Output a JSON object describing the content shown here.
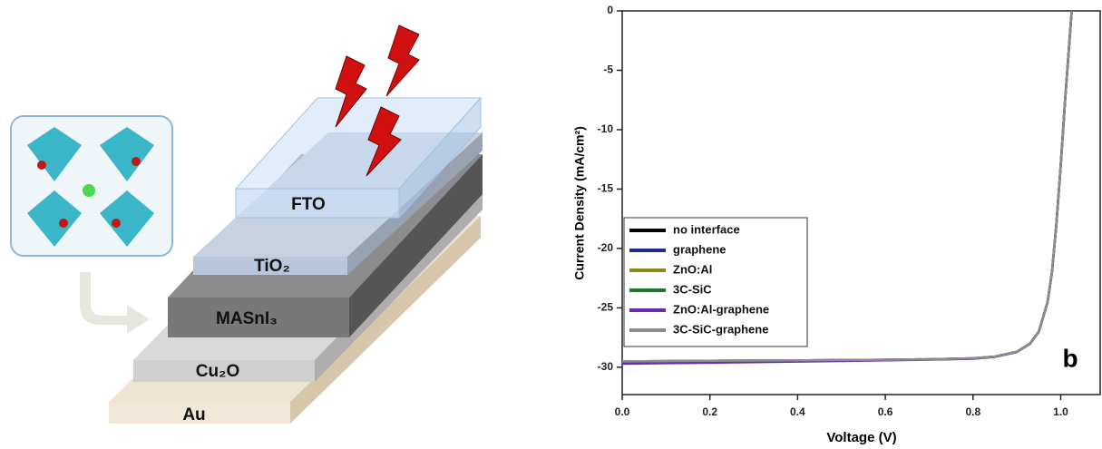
{
  "diagram": {
    "layers": [
      "FTO",
      "TiO₂",
      "MASnI₃",
      "Cu₂O",
      "Au"
    ]
  },
  "chart_data": {
    "type": "line",
    "panel_label": "b",
    "x_label": "Voltage (V)",
    "y_label": "Current Density (mA/cm²)",
    "xlim": [
      0,
      1.09
    ],
    "ylim": [
      -32.3,
      0
    ],
    "xticks": [
      {
        "value": 0,
        "label": "0.0"
      },
      0.2,
      0.4,
      0.6,
      0.8,
      {
        "value": 1,
        "label": "1.0"
      }
    ],
    "yticks": [
      0,
      -5,
      -10,
      -15,
      -20,
      -25,
      -30
    ],
    "x": [
      0,
      0.1,
      0.2,
      0.3,
      0.4,
      0.5,
      0.6,
      0.7,
      0.8,
      0.85,
      0.9,
      0.93,
      0.95,
      0.97,
      0.98,
      0.99,
      1.0,
      1.01,
      1.02,
      1.025
    ],
    "legend": "lower left",
    "series": [
      {
        "name": "no interface",
        "color": "#000000",
        "values": [
          -29.5,
          -29.48,
          -29.46,
          -29.44,
          -29.42,
          -29.4,
          -29.37,
          -29.33,
          -29.25,
          -29.1,
          -28.7,
          -28.0,
          -27.0,
          -24.5,
          -22.0,
          -18.0,
          -13.0,
          -7.5,
          -2.5,
          0
        ]
      },
      {
        "name": "graphene",
        "color": "#1f2a8f",
        "values": [
          -29.6,
          -29.57,
          -29.54,
          -29.5,
          -29.47,
          -29.44,
          -29.4,
          -29.35,
          -29.27,
          -29.12,
          -28.72,
          -28.02,
          -27.02,
          -24.52,
          -22.02,
          -18.02,
          -13.02,
          -7.52,
          -2.52,
          0
        ]
      },
      {
        "name": "ZnO:Al",
        "color": "#8a8a1a",
        "values": [
          -29.5,
          -29.48,
          -29.46,
          -29.44,
          -29.42,
          -29.4,
          -29.37,
          -29.33,
          -29.25,
          -29.1,
          -28.7,
          -28.0,
          -27.0,
          -24.5,
          -22.0,
          -18.0,
          -13.0,
          -7.5,
          -2.5,
          0
        ]
      },
      {
        "name": "3C-SiC",
        "color": "#1a7a2a",
        "values": [
          -29.5,
          -29.48,
          -29.46,
          -29.44,
          -29.42,
          -29.4,
          -29.37,
          -29.33,
          -29.25,
          -29.1,
          -28.7,
          -28.0,
          -27.0,
          -24.5,
          -22.0,
          -18.0,
          -13.0,
          -7.5,
          -2.5,
          0
        ]
      },
      {
        "name": "ZnO:Al-graphene",
        "color": "#6a2ab8",
        "values": [
          -29.7,
          -29.66,
          -29.62,
          -29.57,
          -29.52,
          -29.47,
          -29.42,
          -29.36,
          -29.28,
          -29.12,
          -28.72,
          -28.02,
          -27.02,
          -24.52,
          -22.02,
          -18.02,
          -13.02,
          -7.52,
          -2.52,
          0
        ]
      },
      {
        "name": "3C-SiC-graphene",
        "color": "#8c8c8c",
        "values": [
          -29.5,
          -29.48,
          -29.46,
          -29.44,
          -29.42,
          -29.4,
          -29.37,
          -29.33,
          -29.25,
          -29.1,
          -28.7,
          -28.0,
          -27.0,
          -24.5,
          -22.0,
          -18.0,
          -13.0,
          -7.5,
          -2.5,
          0
        ]
      }
    ]
  }
}
